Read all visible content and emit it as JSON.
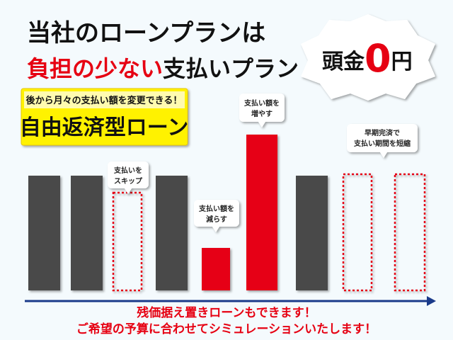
{
  "header": {
    "line1": "当社のローンプランは",
    "line2_red": "負担の少ない",
    "line2_black": "支払いプラン"
  },
  "badge": {
    "prefix": "頭金",
    "number": "0",
    "suffix": "円"
  },
  "feature": {
    "subtitle": "後から月々の支払い額を変更できる！",
    "title": "自由返済型ローン"
  },
  "callouts": [
    {
      "lines": [
        "支払いを",
        "スキップ"
      ]
    },
    {
      "lines": [
        "支払い額を",
        "減らす"
      ]
    },
    {
      "lines": [
        "支払い額を",
        "増やす"
      ]
    },
    {
      "lines": [
        "早期完済で",
        "支払い期間を短縮"
      ]
    }
  ],
  "footer": {
    "line1": "残価据え置きローンもできます！",
    "line2": "ご希望の予算に合わせてシミュレーションいたします！"
  }
}
